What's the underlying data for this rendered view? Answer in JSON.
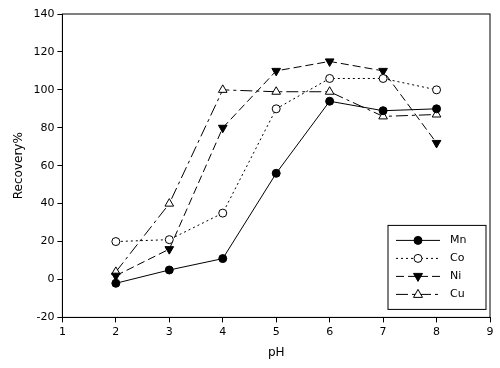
{
  "chart_data": {
    "type": "line",
    "x_label": "pH",
    "y_label": "Recovery%",
    "x": [
      2,
      3,
      4,
      5,
      6,
      7,
      8
    ],
    "series": [
      {
        "name": "Mn",
        "color": "#000000",
        "marker": "circle",
        "line_style": "solid",
        "values": [
          -2,
          5,
          11,
          56,
          94,
          89,
          90
        ]
      },
      {
        "name": "Co",
        "color": "#000000",
        "marker": "circle_open",
        "line_style": "dotted",
        "values": [
          20,
          21,
          35,
          90,
          106,
          106,
          100
        ]
      },
      {
        "name": "Ni",
        "color": "#000000",
        "marker": "triangle_down",
        "line_style": "dashed",
        "values": [
          2,
          16,
          80,
          110,
          115,
          110,
          72
        ]
      },
      {
        "name": "Cu",
        "color": "#000000",
        "marker": "triangle_up_open",
        "line_style": "dashdot",
        "values": [
          4,
          40,
          100,
          99,
          99,
          86,
          87
        ]
      }
    ],
    "xlim": [
      1,
      9
    ],
    "xticks": [
      1,
      2,
      3,
      4,
      5,
      6,
      7,
      8,
      9
    ],
    "ylim": [
      -20,
      140
    ],
    "yticks": [
      -20,
      0,
      20,
      40,
      60,
      80,
      100,
      120,
      140
    ],
    "grid": false,
    "legend": "lower right"
  }
}
